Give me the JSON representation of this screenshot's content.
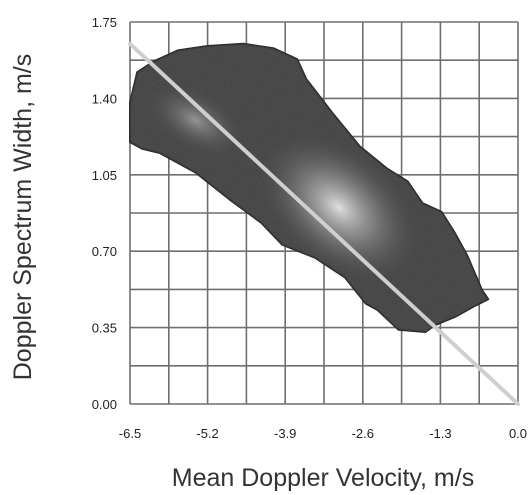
{
  "chart_data": {
    "type": "heatmap",
    "title": "",
    "xlabel": "Mean Doppler Velocity, m/s",
    "ylabel": "Doppler Spectrum Width, m/s",
    "xlim": [
      -6.5,
      0.0
    ],
    "ylim": [
      0.0,
      1.75
    ],
    "x_ticks": [
      "-6.5",
      "-5.2",
      "-3.9",
      "-2.6",
      "-1.3",
      "0.0"
    ],
    "y_ticks": [
      "0.00",
      "0.35",
      "0.70",
      "1.05",
      "1.40",
      "1.75"
    ],
    "x_grid_step": 0.65,
    "y_grid_step": 0.175,
    "grid": true,
    "density_cluster": {
      "peak": [
        -3.0,
        0.9
      ],
      "extent_x": [
        -6.5,
        -0.5
      ],
      "extent_y": [
        0.32,
        1.65
      ]
    },
    "fit_line": {
      "points": [
        [
          -6.5,
          1.65
        ],
        [
          0.0,
          0.0
        ]
      ],
      "color": "#cfcfcf"
    },
    "colors": {
      "grid": "#6f6f6f",
      "density_low": "#1a1a1a",
      "density_high": "#e6e6e6"
    }
  }
}
